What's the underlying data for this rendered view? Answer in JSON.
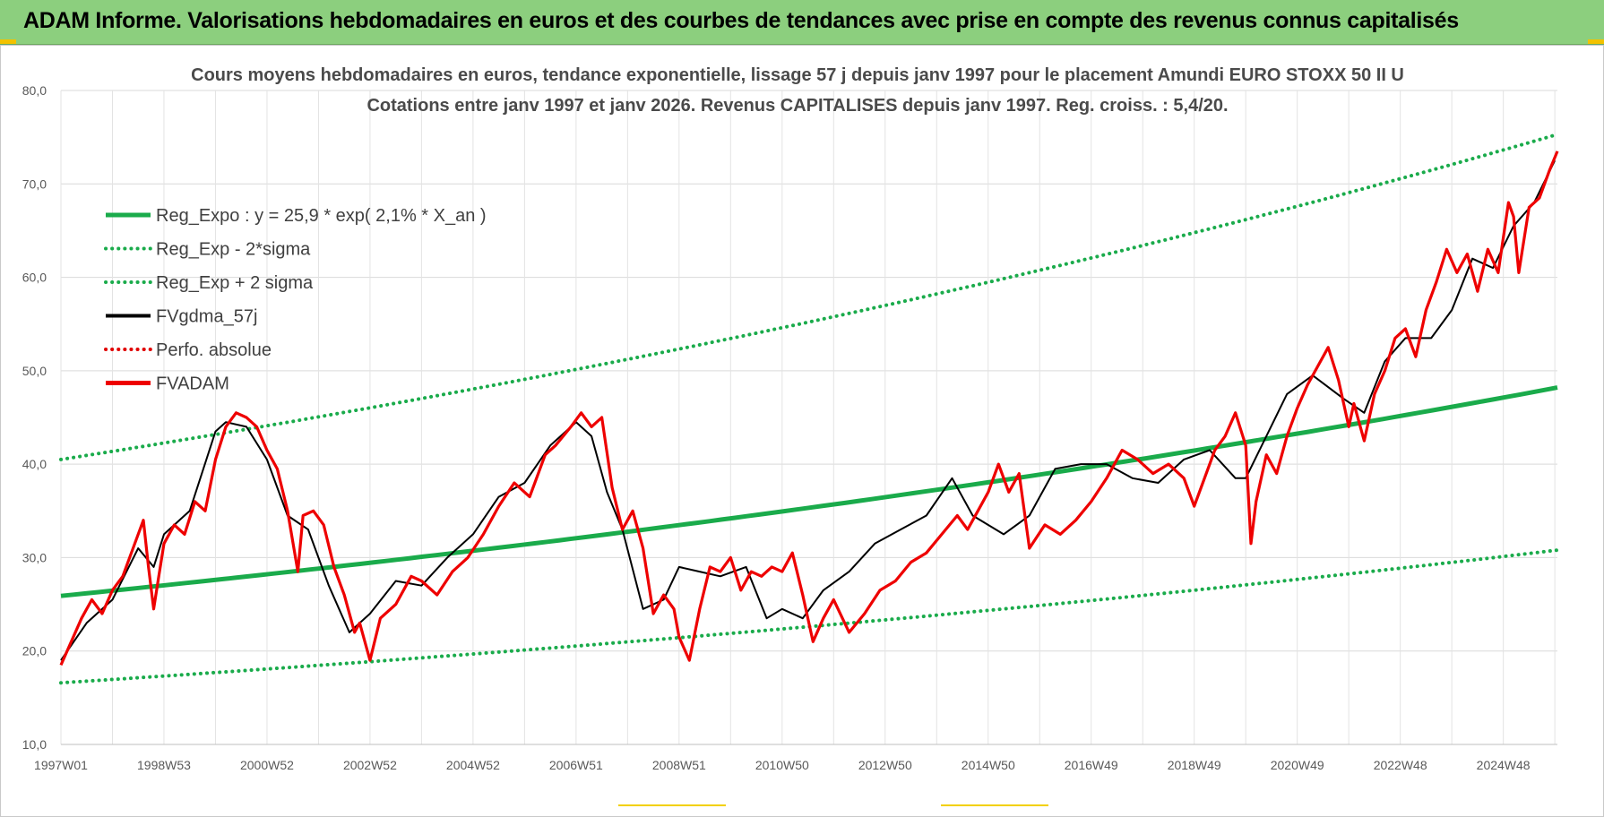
{
  "banner": {
    "text": "ADAM Informe. Valorisations hebdomadaires en euros et des courbes de tendances avec prise en compte des revenus connus capitalisés"
  },
  "chart_data": {
    "type": "line",
    "title": "Cours moyens hebdomadaires en euros, tendance exponentielle, lissage 57 j depuis janv 1997  pour le placement Amundi EURO STOXX 50 II U",
    "subtitle": "Cotations entre janv 1997 et janv 2026. Revenus CAPITALISES depuis janv 1997. Reg. croiss. : 5,4/20.",
    "ylim": [
      10,
      80
    ],
    "yticks": [
      "10,0",
      "20,0",
      "30,0",
      "40,0",
      "50,0",
      "60,0",
      "70,0",
      "80,0"
    ],
    "xlim": [
      1997.0,
      2026.05
    ],
    "xticks": [
      {
        "label": "1997W01",
        "year": 1997.0
      },
      {
        "label": "1998W53",
        "year": 1999.0
      },
      {
        "label": "2000W52",
        "year": 2001.0
      },
      {
        "label": "2002W52",
        "year": 2003.0
      },
      {
        "label": "2004W52",
        "year": 2005.0
      },
      {
        "label": "2006W51",
        "year": 2007.0
      },
      {
        "label": "2008W51",
        "year": 2009.0
      },
      {
        "label": "2010W50",
        "year": 2011.0
      },
      {
        "label": "2012W50",
        "year": 2013.0
      },
      {
        "label": "2014W50",
        "year": 2015.0
      },
      {
        "label": "2016W49",
        "year": 2017.0
      },
      {
        "label": "2018W49",
        "year": 2019.0
      },
      {
        "label": "2020W49",
        "year": 2021.0
      },
      {
        "label": "2022W48",
        "year": 2023.0
      },
      {
        "label": "2024W48",
        "year": 2025.0
      }
    ],
    "grid": true,
    "legend_position": "top-left",
    "series": [
      {
        "name": "Reg_Expo : y = 25,9 * exp( 2,1% *  X_an )",
        "color": "#1aab4b",
        "style": "solid-thick",
        "x": [
          1997.0,
          2026.05
        ],
        "y": [
          25.9,
          48.2
        ]
      },
      {
        "name": "Reg_Exp - 2*sigma",
        "color": "#1aab4b",
        "style": "dotted",
        "x": [
          1997.0,
          2026.05
        ],
        "y": [
          16.6,
          30.8
        ]
      },
      {
        "name": "Reg_Exp + 2 sigma",
        "color": "#1aab4b",
        "style": "dotted",
        "x": [
          1997.0,
          2026.05
        ],
        "y": [
          40.5,
          75.3
        ]
      },
      {
        "name": "FVgdma_57j",
        "color": "#000000",
        "style": "solid",
        "x": [
          1997.0,
          1997.5,
          1998.0,
          1998.5,
          1998.8,
          1999.0,
          1999.5,
          2000.0,
          2000.2,
          2000.6,
          2001.0,
          2001.4,
          2001.8,
          2002.2,
          2002.6,
          2003.0,
          2003.5,
          2004.0,
          2004.5,
          2005.0,
          2005.5,
          2006.0,
          2006.5,
          2007.0,
          2007.3,
          2007.6,
          2007.9,
          2008.3,
          2008.7,
          2009.0,
          2009.4,
          2009.8,
          2010.3,
          2010.7,
          2011.0,
          2011.4,
          2011.8,
          2012.3,
          2012.8,
          2013.3,
          2013.8,
          2014.3,
          2014.7,
          2015.3,
          2015.8,
          2016.3,
          2016.8,
          2017.3,
          2017.8,
          2018.3,
          2018.8,
          2019.3,
          2019.8,
          2020.0,
          2020.4,
          2020.8,
          2021.3,
          2021.9,
          2022.3,
          2022.7,
          2023.1,
          2023.6,
          2024.0,
          2024.4,
          2024.8,
          2025.2,
          2025.6,
          2026.0
        ],
        "y": [
          19.0,
          23.0,
          25.5,
          31.0,
          29.0,
          32.5,
          35.0,
          43.5,
          44.5,
          44.0,
          40.5,
          34.5,
          33.0,
          27.0,
          22.0,
          24.0,
          27.5,
          27.0,
          30.0,
          32.5,
          36.5,
          38.0,
          42.0,
          44.5,
          43.0,
          37.0,
          33.0,
          24.5,
          25.5,
          29.0,
          28.5,
          28.0,
          29.0,
          23.5,
          24.5,
          23.5,
          26.5,
          28.5,
          31.5,
          33.0,
          34.5,
          38.5,
          34.5,
          32.5,
          34.5,
          39.5,
          40.0,
          40.0,
          38.5,
          38.0,
          40.5,
          41.5,
          38.5,
          38.5,
          43.0,
          47.5,
          49.5,
          47.0,
          45.5,
          51.0,
          53.5,
          53.5,
          56.5,
          62.0,
          61.0,
          65.5,
          68.0,
          72.5
        ]
      },
      {
        "name": "Perfo. absolue",
        "color": "#e00000",
        "style": "dotted",
        "x": [],
        "y": []
      },
      {
        "name": "FVADAM",
        "color": "#ee0000",
        "style": "solid-thick",
        "x": [
          1997.0,
          1997.2,
          1997.4,
          1997.6,
          1997.8,
          1998.0,
          1998.2,
          1998.4,
          1998.6,
          1998.7,
          1998.8,
          1998.9,
          1999.0,
          1999.2,
          1999.4,
          1999.6,
          1999.8,
          2000.0,
          2000.2,
          2000.4,
          2000.6,
          2000.8,
          2001.0,
          2001.2,
          2001.4,
          2001.6,
          2001.7,
          2001.9,
          2002.1,
          2002.3,
          2002.5,
          2002.7,
          2002.8,
          2003.0,
          2003.2,
          2003.5,
          2003.8,
          2004.0,
          2004.3,
          2004.6,
          2004.9,
          2005.2,
          2005.5,
          2005.8,
          2006.1,
          2006.4,
          2006.6,
          2006.9,
          2007.1,
          2007.3,
          2007.5,
          2007.7,
          2007.9,
          2008.1,
          2008.3,
          2008.5,
          2008.7,
          2008.9,
          2009.0,
          2009.2,
          2009.4,
          2009.6,
          2009.8,
          2010.0,
          2010.2,
          2010.4,
          2010.6,
          2010.8,
          2011.0,
          2011.2,
          2011.4,
          2011.6,
          2011.8,
          2012.0,
          2012.3,
          2012.6,
          2012.9,
          2013.2,
          2013.5,
          2013.8,
          2014.1,
          2014.4,
          2014.6,
          2014.8,
          2015.0,
          2015.2,
          2015.4,
          2015.6,
          2015.8,
          2016.1,
          2016.4,
          2016.7,
          2017.0,
          2017.3,
          2017.6,
          2017.9,
          2018.2,
          2018.5,
          2018.8,
          2019.0,
          2019.2,
          2019.4,
          2019.6,
          2019.8,
          2020.0,
          2020.1,
          2020.2,
          2020.4,
          2020.6,
          2020.8,
          2021.0,
          2021.2,
          2021.4,
          2021.6,
          2021.8,
          2022.0,
          2022.1,
          2022.3,
          2022.5,
          2022.7,
          2022.9,
          2023.1,
          2023.3,
          2023.5,
          2023.7,
          2023.9,
          2024.1,
          2024.3,
          2024.5,
          2024.7,
          2024.9,
          2025.1,
          2025.2,
          2025.3,
          2025.5,
          2025.7,
          2025.9,
          2026.05
        ],
        "y": [
          18.5,
          21.0,
          23.5,
          25.5,
          24.0,
          26.5,
          28.0,
          31.0,
          34.0,
          29.0,
          24.5,
          28.0,
          31.5,
          33.5,
          32.5,
          36.0,
          35.0,
          40.5,
          44.0,
          45.5,
          45.0,
          44.0,
          41.5,
          39.5,
          35.0,
          28.5,
          34.5,
          35.0,
          33.5,
          29.0,
          26.0,
          22.0,
          23.0,
          19.0,
          23.5,
          25.0,
          28.0,
          27.5,
          26.0,
          28.5,
          30.0,
          32.5,
          35.5,
          38.0,
          36.5,
          41.0,
          42.0,
          44.0,
          45.5,
          44.0,
          45.0,
          37.5,
          33.0,
          35.0,
          31.0,
          24.0,
          26.0,
          24.5,
          21.5,
          19.0,
          24.5,
          29.0,
          28.5,
          30.0,
          26.5,
          28.5,
          28.0,
          29.0,
          28.5,
          30.5,
          26.0,
          21.0,
          23.5,
          25.5,
          22.0,
          24.0,
          26.5,
          27.5,
          29.5,
          30.5,
          32.5,
          34.5,
          33.0,
          35.0,
          37.0,
          40.0,
          37.0,
          39.0,
          31.0,
          33.5,
          32.5,
          34.0,
          36.0,
          38.5,
          41.5,
          40.5,
          39.0,
          40.0,
          38.5,
          35.5,
          38.5,
          41.5,
          43.0,
          45.5,
          42.0,
          31.5,
          36.0,
          41.0,
          39.0,
          43.0,
          46.0,
          48.5,
          50.5,
          52.5,
          49.0,
          44.0,
          46.5,
          42.5,
          47.5,
          50.0,
          53.5,
          54.5,
          51.5,
          56.5,
          59.5,
          63.0,
          60.5,
          62.5,
          58.5,
          63.0,
          60.5,
          68.0,
          66.5,
          60.5,
          67.5,
          68.5,
          71.5,
          73.5
        ]
      }
    ]
  }
}
